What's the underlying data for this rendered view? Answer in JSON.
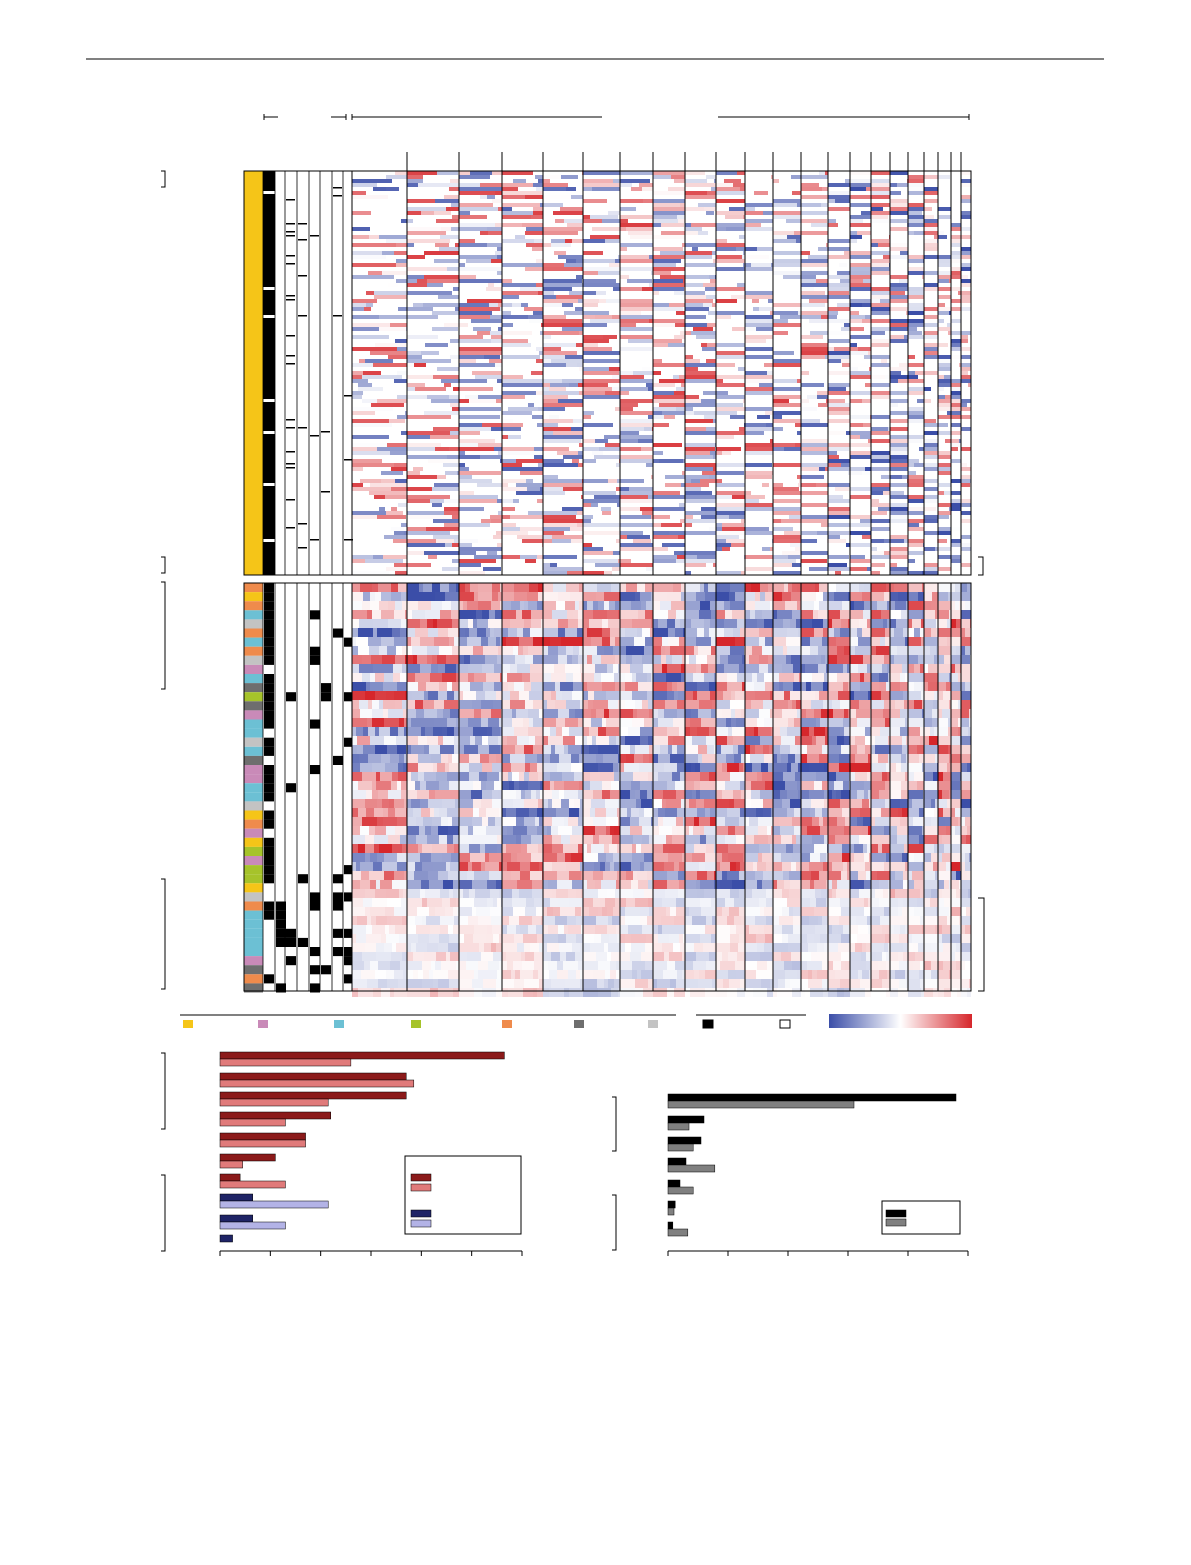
{
  "figure": {
    "top_rule": true
  },
  "panel_a": {
    "legend": {
      "subtype_colors": [
        "#f5c518",
        "#c98ab8",
        "#6cc0d4",
        "#a6c32a",
        "#ef8b4c",
        "#6e6e6e",
        "#c3c3c3"
      ],
      "mutation_key": [
        "#000000",
        "#ffffff"
      ],
      "heatmap_scale": [
        "#3b4ea8",
        "#ffffff",
        "#d6262b"
      ]
    },
    "colors": {
      "blue": "#3b4ea8",
      "red": "#d6262b",
      "black": "#000000",
      "yellow": "#f5c518"
    }
  },
  "chart_data": [
    {
      "type": "bar",
      "orientation": "horizontal",
      "title": "",
      "xlabel": "",
      "ylabel": "",
      "xlim": [
        0,
        6
      ],
      "series": [
        {
          "color": "#8b1a1a",
          "values": [
            5.65,
            3.7,
            3.7,
            2.2,
            1.7,
            1.1,
            0.4,
            0.0,
            0.0,
            0.0
          ]
        },
        {
          "color": "#e07a7a",
          "values": [
            2.6,
            3.85,
            2.15,
            1.3,
            1.7,
            0.45,
            1.3,
            0.0,
            0.0,
            0.0
          ]
        },
        {
          "color": "#1f2466",
          "values": [
            0.0,
            0.0,
            0.0,
            0.0,
            0.0,
            0.0,
            0.0,
            0.65,
            0.65,
            0.25
          ]
        },
        {
          "color": "#b3b3e6",
          "values": [
            0.0,
            0.0,
            0.0,
            0.0,
            0.0,
            0.0,
            0.0,
            2.15,
            1.3,
            0.0
          ]
        }
      ],
      "legend": [
        "#8b1a1a",
        "#e07a7a",
        "#1f2466",
        "#b3b3e6"
      ]
    },
    {
      "type": "bar",
      "orientation": "horizontal",
      "title": "",
      "xlabel": "",
      "ylabel": "",
      "xlim": [
        0,
        5
      ],
      "series": [
        {
          "color": "#000000",
          "values": [
            4.8,
            0.6,
            0.55,
            0.3,
            0.2,
            0.12,
            0.08
          ]
        },
        {
          "color": "#808080",
          "values": [
            3.1,
            0.35,
            0.42,
            0.78,
            0.42,
            0.1,
            0.33
          ]
        }
      ],
      "legend": [
        "#000000",
        "#808080"
      ]
    }
  ]
}
